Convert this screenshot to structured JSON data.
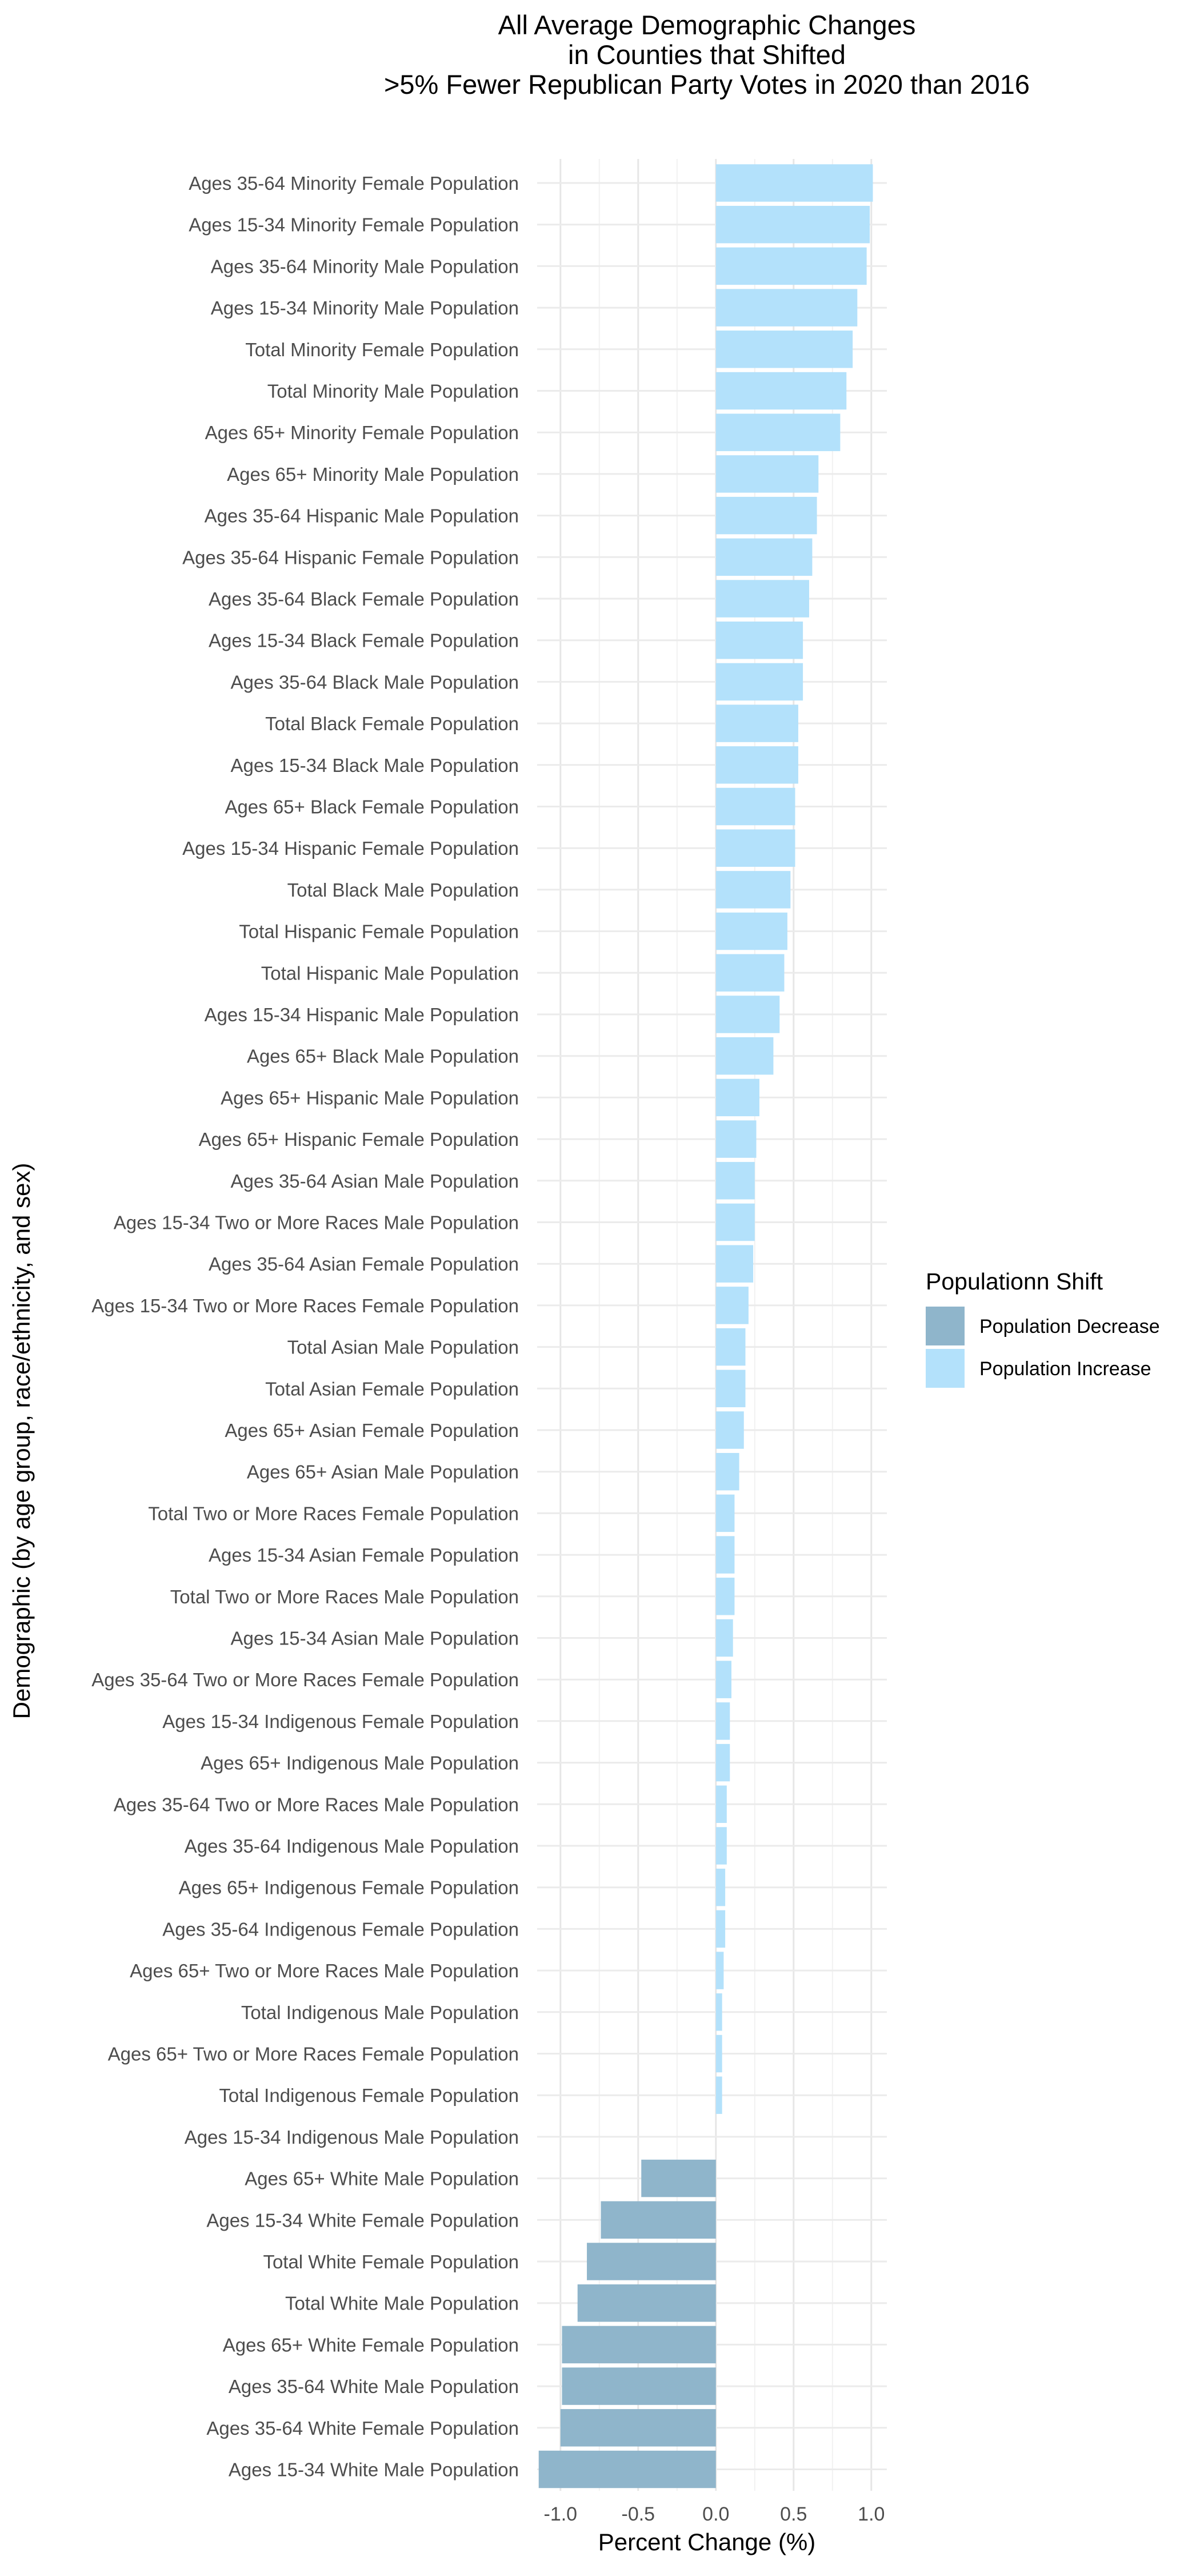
{
  "chart_data": {
    "type": "bar",
    "orientation": "horizontal",
    "title": "All Average Demographic Changes\nin Counties that Shifted\n>5% Fewer Republican Party Votes in 2020 than 2016",
    "xlabel": "Percent Change (%)",
    "ylabel": "Demographic (by age group, race/ethnicity, and sex)",
    "xlim": [
      -1.15,
      1.1
    ],
    "xticks": [
      -1.0,
      -0.5,
      0.0,
      0.5,
      1.0
    ],
    "xtick_labels": [
      "-1.0",
      "-0.5",
      "0.0",
      "0.5",
      "1.0"
    ],
    "grid": true,
    "legend": {
      "title": "Populationn Shift",
      "position": "right",
      "entries": [
        {
          "label": "Population Decrease",
          "color": "#8fb5cb"
        },
        {
          "label": "Population Increase",
          "color": "#b3e1fb"
        }
      ]
    },
    "categories": [
      "Ages 35-64 Minority Female Population",
      "Ages 15-34 Minority Female Population",
      "Ages 35-64 Minority Male Population",
      "Ages 15-34 Minority Male Population",
      "Total Minority Female Population",
      "Total Minority Male Population",
      "Ages 65+ Minority Female Population",
      "Ages 65+ Minority Male Population",
      "Ages 35-64 Hispanic Male Population",
      "Ages 35-64 Hispanic Female Population",
      "Ages 35-64 Black Female Population",
      "Ages 15-34 Black Female Population",
      "Ages 35-64 Black Male Population",
      "Total Black Female Population",
      "Ages 15-34 Black Male Population",
      "Ages 65+ Black Female Population",
      "Ages 15-34 Hispanic Female Population",
      "Total Black Male Population",
      "Total Hispanic Female Population",
      "Total Hispanic Male Population",
      "Ages 15-34 Hispanic Male Population",
      "Ages 65+ Black Male Population",
      "Ages 65+ Hispanic Male Population",
      "Ages 65+ Hispanic Female Population",
      "Ages 35-64 Asian Male Population",
      "Ages 15-34 Two or More Races Male Population",
      "Ages 35-64 Asian Female Population",
      "Ages 15-34 Two or More Races Female Population",
      "Total Asian Male Population",
      "Total Asian Female Population",
      "Ages 65+ Asian Female Population",
      "Ages 65+ Asian Male Population",
      "Total Two or More Races Female Population",
      "Ages 15-34 Asian Female Population",
      "Total Two or More Races Male Population",
      "Ages 15-34 Asian Male Population",
      "Ages 35-64 Two or More Races Female Population",
      "Ages 15-34 Indigenous Female Population",
      "Ages 65+ Indigenous Male Population",
      "Ages 35-64 Two or More Races Male Population",
      "Ages 35-64 Indigenous Male Population",
      "Ages 65+ Indigenous Female Population",
      "Ages 35-64 Indigenous Female Population",
      "Ages 65+ Two or More Races Male Population",
      "Total Indigenous Male Population",
      "Ages 65+ Two or More Races Female Population",
      "Total Indigenous Female Population",
      "Ages 15-34 Indigenous Male Population",
      "Ages 65+ White Male Population",
      "Ages 15-34 White Female Population",
      "Total White Female Population",
      "Total White Male Population",
      "Ages 65+ White Female Population",
      "Ages 35-64 White Male Population",
      "Ages 35-64 White Female Population",
      "Ages 15-34 White Male Population"
    ],
    "values": [
      1.01,
      0.99,
      0.97,
      0.91,
      0.88,
      0.84,
      0.8,
      0.66,
      0.65,
      0.62,
      0.6,
      0.56,
      0.56,
      0.53,
      0.53,
      0.51,
      0.51,
      0.48,
      0.46,
      0.44,
      0.41,
      0.37,
      0.28,
      0.26,
      0.25,
      0.25,
      0.24,
      0.21,
      0.19,
      0.19,
      0.18,
      0.15,
      0.12,
      0.12,
      0.12,
      0.11,
      0.1,
      0.09,
      0.09,
      0.07,
      0.07,
      0.06,
      0.06,
      0.05,
      0.04,
      0.04,
      0.04,
      0.0,
      -0.48,
      -0.74,
      -0.83,
      -0.89,
      -0.99,
      -0.99,
      -1.0,
      -1.14
    ]
  }
}
